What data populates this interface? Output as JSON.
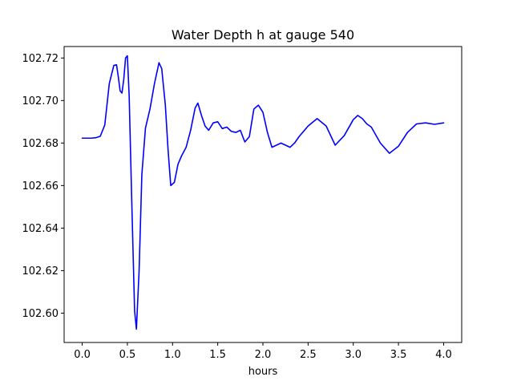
{
  "chart_data": {
    "type": "line",
    "title": "Water Depth h at gauge 540",
    "xlabel": "hours",
    "ylabel": "",
    "xlim": [
      -0.2,
      4.2
    ],
    "ylim": [
      102.5862,
      102.7254
    ],
    "xticks": [
      0.0,
      0.5,
      1.0,
      1.5,
      2.0,
      2.5,
      3.0,
      3.5,
      4.0
    ],
    "xtick_labels": [
      "0.0",
      "0.5",
      "1.0",
      "1.5",
      "2.0",
      "2.5",
      "3.0",
      "3.5",
      "4.0"
    ],
    "yticks": [
      102.6,
      102.62,
      102.64,
      102.66,
      102.68,
      102.7,
      102.72
    ],
    "ytick_labels": [
      "102.60",
      "102.62",
      "102.64",
      "102.66",
      "102.68",
      "102.70",
      "102.72"
    ],
    "grid": false,
    "series": [
      {
        "color": "#0000ff",
        "x": [
          0.0,
          0.1,
          0.15,
          0.2,
          0.25,
          0.3,
          0.35,
          0.38,
          0.4,
          0.42,
          0.44,
          0.46,
          0.48,
          0.5,
          0.52,
          0.55,
          0.58,
          0.6,
          0.63,
          0.66,
          0.7,
          0.75,
          0.8,
          0.85,
          0.88,
          0.92,
          0.95,
          0.98,
          1.02,
          1.06,
          1.1,
          1.15,
          1.2,
          1.25,
          1.28,
          1.32,
          1.36,
          1.4,
          1.45,
          1.5,
          1.55,
          1.6,
          1.65,
          1.7,
          1.75,
          1.8,
          1.85,
          1.9,
          1.95,
          2.0,
          2.05,
          2.1,
          2.15,
          2.2,
          2.25,
          2.3,
          2.35,
          2.4,
          2.5,
          2.6,
          2.7,
          2.8,
          2.9,
          3.0,
          3.05,
          3.1,
          3.15,
          3.2,
          3.3,
          3.4,
          3.5,
          3.6,
          3.7,
          3.8,
          3.9,
          4.0
        ],
        "y": [
          102.6823,
          102.6823,
          102.6825,
          102.6832,
          102.6885,
          102.708,
          102.7165,
          102.7168,
          102.711,
          102.7045,
          102.7035,
          102.71,
          102.72,
          102.721,
          102.702,
          102.65,
          102.601,
          102.5925,
          102.62,
          102.665,
          102.687,
          102.696,
          102.708,
          102.7178,
          102.715,
          102.698,
          102.677,
          102.66,
          102.6615,
          102.67,
          102.674,
          102.678,
          102.686,
          102.6965,
          102.6988,
          102.693,
          102.688,
          102.686,
          102.6895,
          102.69,
          102.6868,
          102.6875,
          102.6855,
          102.685,
          102.686,
          102.6805,
          102.683,
          102.696,
          102.6978,
          102.6945,
          102.685,
          102.678,
          102.679,
          102.68,
          102.679,
          102.678,
          102.68,
          102.683,
          102.688,
          102.6915,
          102.688,
          102.679,
          102.6835,
          102.691,
          102.693,
          102.6915,
          102.689,
          102.6875,
          102.68,
          102.6752,
          102.6785,
          102.685,
          102.689,
          102.6895,
          102.6888,
          102.6895
        ]
      }
    ]
  }
}
